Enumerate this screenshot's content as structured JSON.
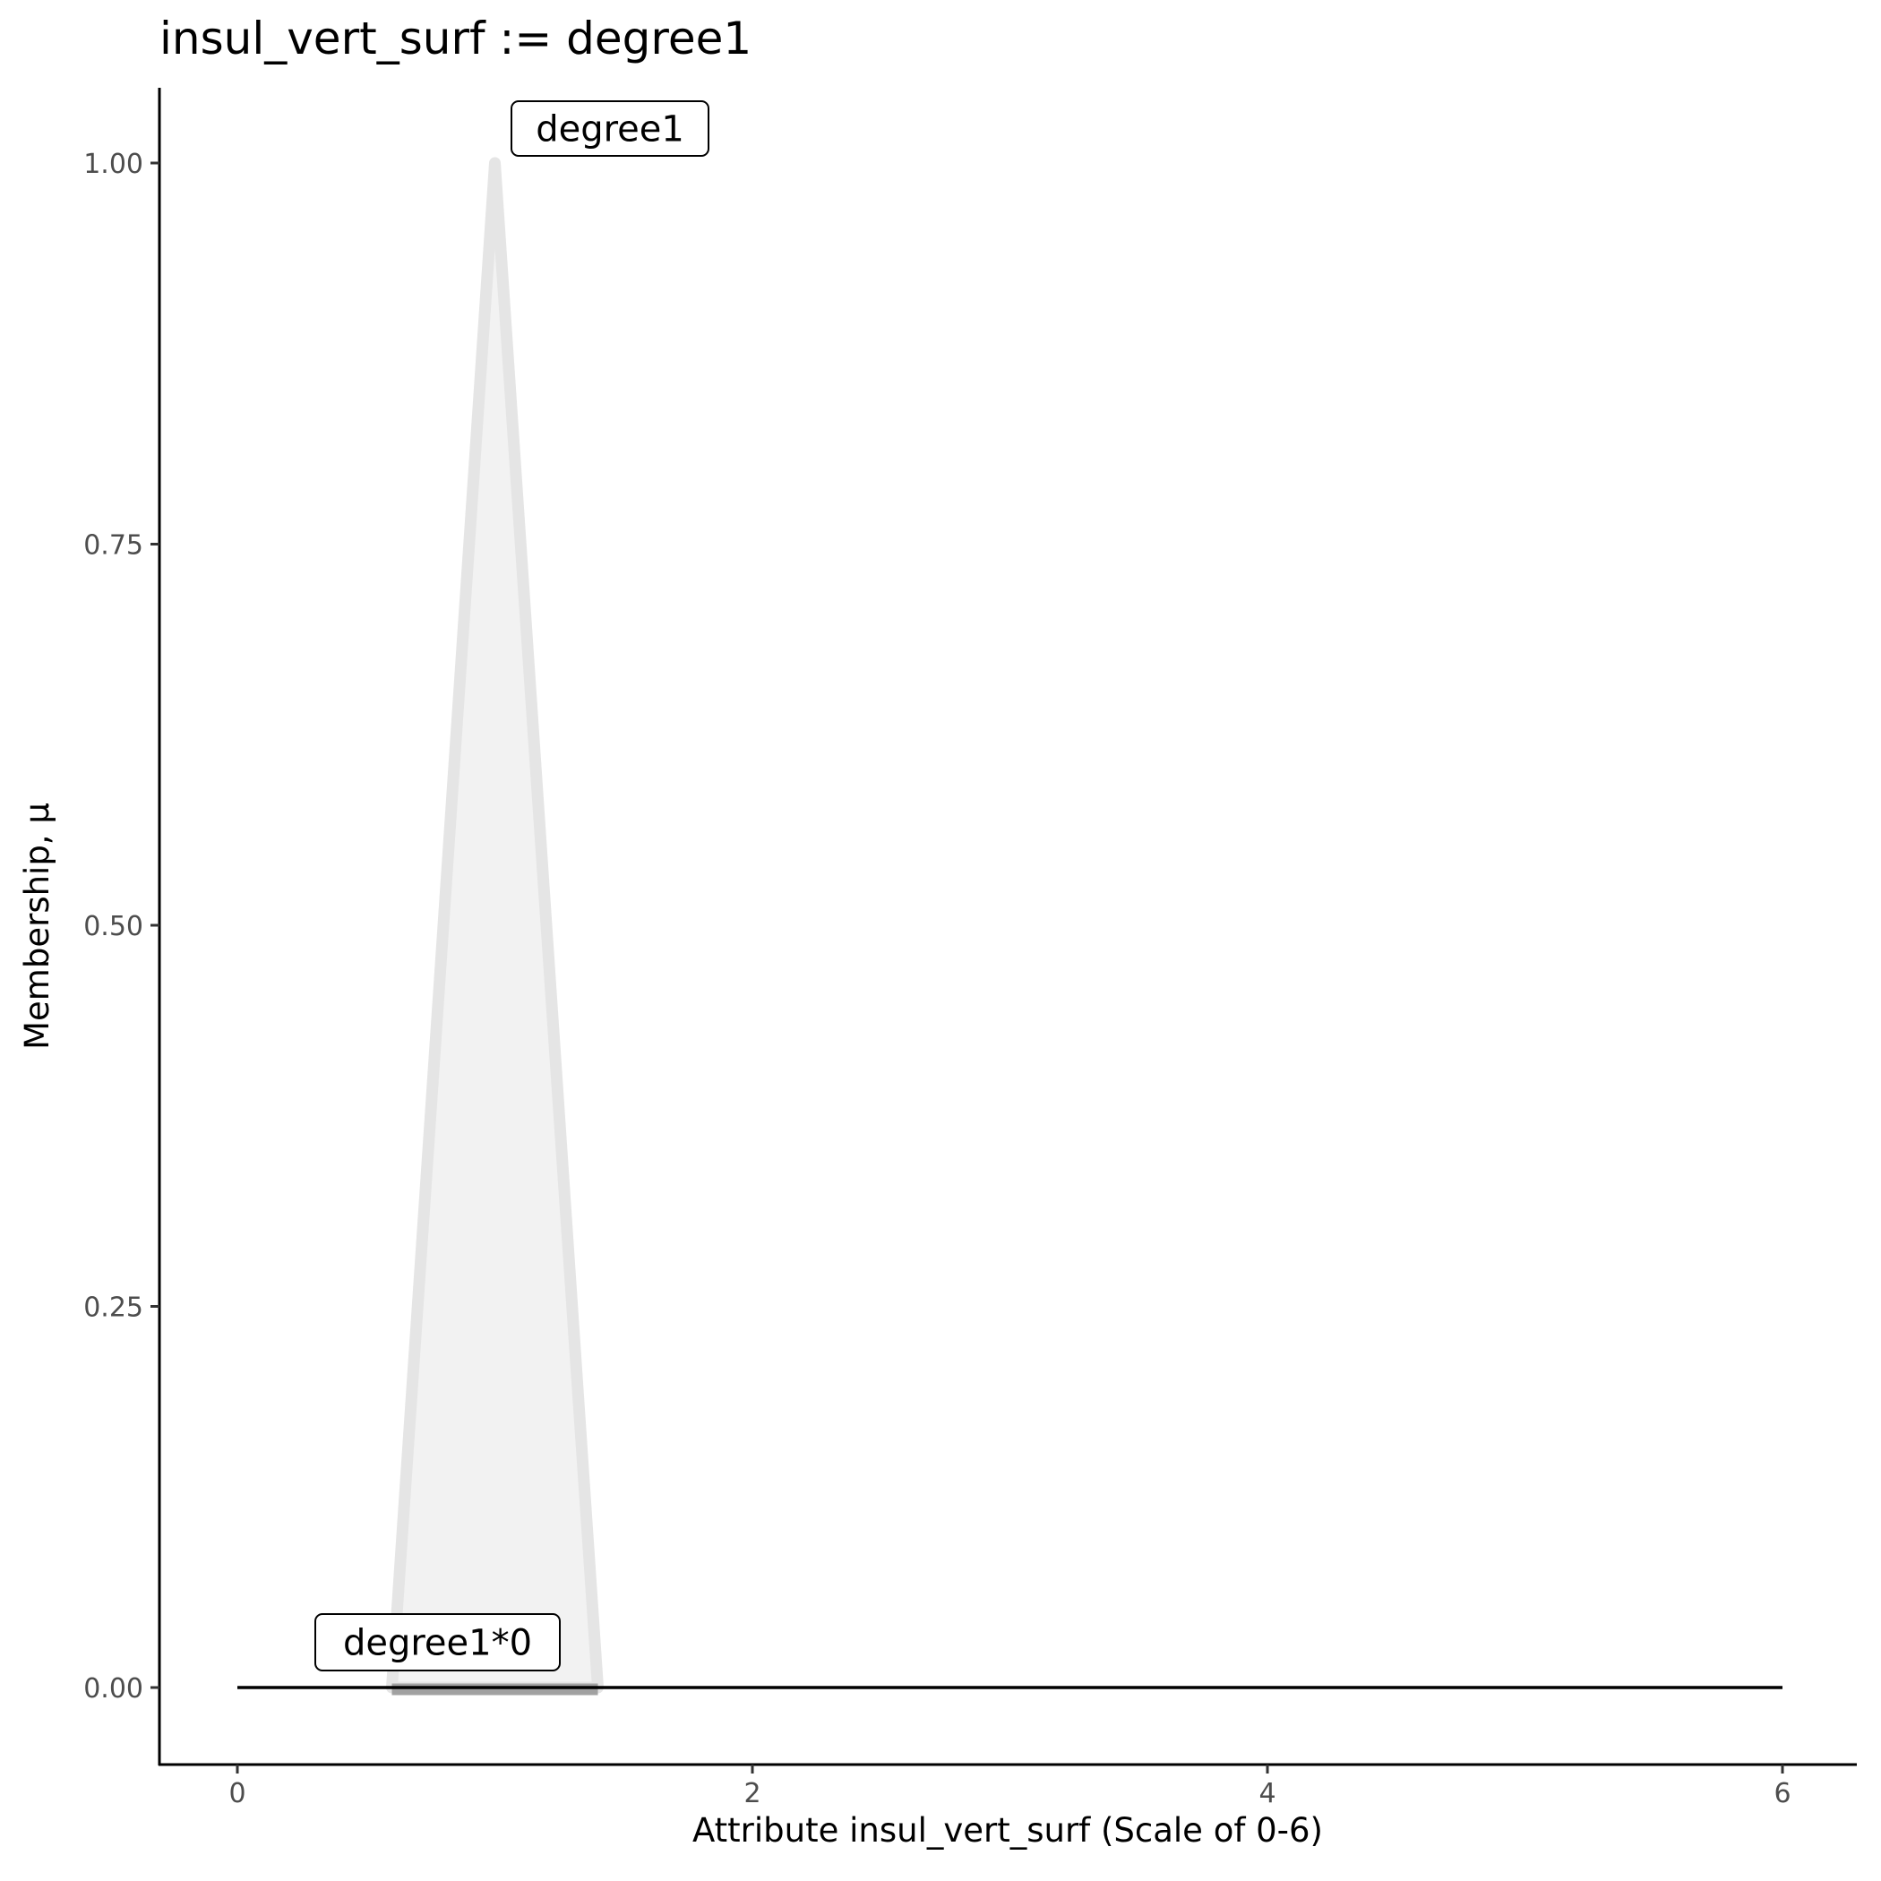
{
  "chart_data": {
    "type": "area",
    "title": "insul_vert_surf := degree1",
    "xlabel": "Attribute insul_vert_surf (Scale of 0-6)",
    "ylabel": "Membership, μ",
    "xlim": [
      -0.3,
      6.3
    ],
    "ylim": [
      -0.05,
      1.05
    ],
    "x_ticks": [
      0,
      2,
      4,
      6
    ],
    "x_tick_labels": [
      "0",
      "2",
      "4",
      "6"
    ],
    "y_ticks": [
      0,
      0.25,
      0.5,
      0.75,
      1.0
    ],
    "y_tick_labels": [
      "0.00",
      "0.25",
      "0.50",
      "0.75",
      "1.00"
    ],
    "grid": false,
    "series": [
      {
        "x": [
          0.6,
          1.0,
          1.4
        ],
        "y": [
          0,
          1,
          0
        ],
        "fill": "#f2f2f2",
        "stroke": "#e5e5e5"
      },
      {
        "x": [
          0,
          6
        ],
        "y": [
          0,
          0
        ],
        "stroke": "#000000"
      }
    ],
    "support_bar": {
      "x": [
        0.6,
        1.4
      ],
      "y": 0,
      "color": "#999999"
    },
    "annotations": [
      {
        "text": "degree1",
        "x": 1.0,
        "y": 1.0
      },
      {
        "text": "degree1*0",
        "x": 0.6,
        "y": 0
      }
    ]
  }
}
